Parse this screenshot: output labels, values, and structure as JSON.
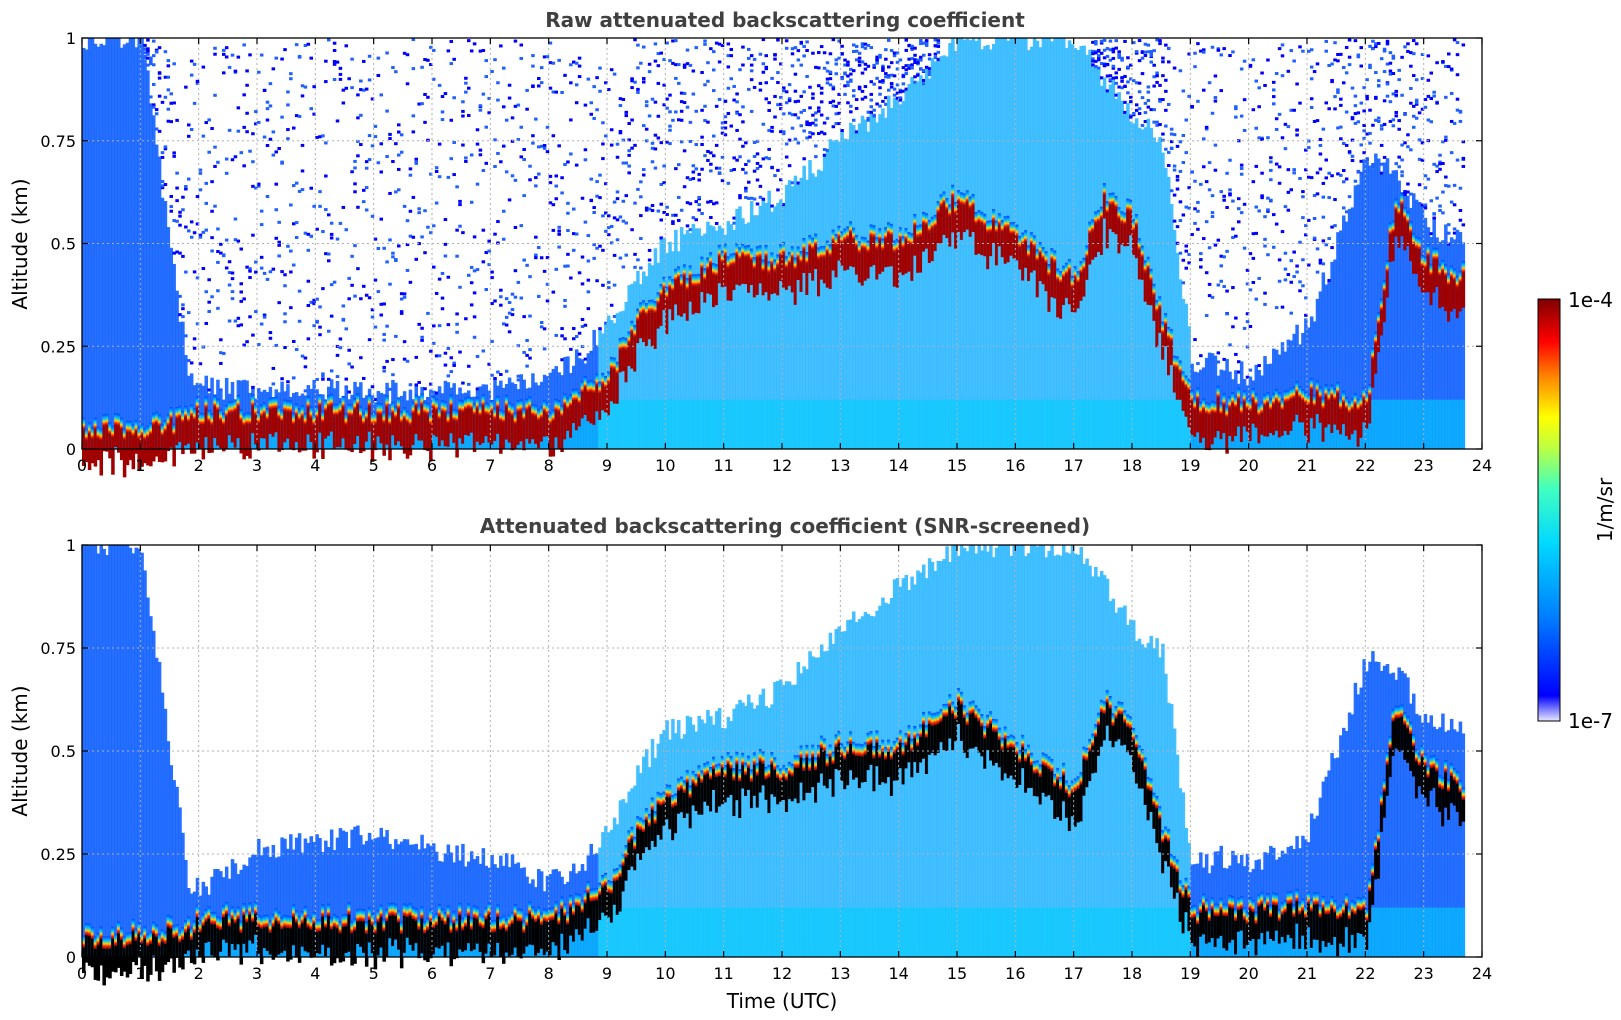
{
  "chart_data": [
    {
      "type": "heatmap",
      "title": "Raw attenuated backscattering coefficient",
      "ylabel": "Altitude (km)",
      "xlabel": "",
      "xlim": [
        0,
        24
      ],
      "ylim": [
        0,
        1
      ],
      "x_ticks": [
        "0",
        "1",
        "2",
        "3",
        "4",
        "5",
        "6",
        "7",
        "8",
        "9",
        "10",
        "11",
        "12",
        "13",
        "14",
        "15",
        "16",
        "17",
        "18",
        "19",
        "20",
        "21",
        "22",
        "23",
        "24"
      ],
      "y_ticks": [
        "0",
        "0.25",
        "0.5",
        "0.75",
        "1"
      ],
      "grid": true,
      "variant": "raw",
      "profile": {
        "time": [
          0,
          1,
          1.8,
          2,
          3,
          4,
          5,
          6,
          7,
          8,
          8.5,
          9,
          9.5,
          10,
          11,
          12,
          13,
          14,
          15,
          16,
          17,
          17.5,
          18,
          18.5,
          19,
          19.5,
          20,
          21,
          22,
          22.5,
          23,
          23.7
        ],
        "surface_layer_altitude": [
          0.03,
          0.04,
          0.06,
          0.08,
          0.08,
          0.08,
          0.08,
          0.08,
          0.08,
          0.08,
          0.12,
          0.16,
          0.3,
          0.38,
          0.45,
          0.45,
          0.5,
          0.5,
          0.6,
          0.5,
          0.4,
          0.6,
          0.55,
          0.3,
          0.1,
          0.1,
          0.1,
          0.12,
          0.1,
          0.6,
          0.45,
          0.4
        ],
        "cloud_top_altitude": [
          1,
          1,
          0.18,
          0.15,
          0.14,
          0.14,
          0.14,
          0.14,
          0.14,
          0.18,
          0.22,
          0.3,
          0.42,
          0.5,
          0.55,
          0.62,
          0.75,
          0.85,
          1,
          1,
          1,
          0.9,
          0.8,
          0.75,
          0.22,
          0.2,
          0.18,
          0.3,
          0.7,
          0.68,
          0.55,
          0.5
        ]
      }
    },
    {
      "type": "heatmap",
      "title": "Attenuated backscattering coefficient (SNR-screened)",
      "ylabel": "Altitude (km)",
      "xlabel": "Time (UTC)",
      "xlim": [
        0,
        24
      ],
      "ylim": [
        0,
        1
      ],
      "x_ticks": [
        "0",
        "1",
        "2",
        "3",
        "4",
        "5",
        "6",
        "7",
        "8",
        "9",
        "10",
        "11",
        "12",
        "13",
        "14",
        "15",
        "16",
        "17",
        "18",
        "19",
        "20",
        "21",
        "22",
        "23",
        "24"
      ],
      "y_ticks": [
        "0",
        "0.25",
        "0.5",
        "0.75",
        "1"
      ],
      "grid": true,
      "variant": "screened",
      "profile": {
        "time": [
          0,
          1,
          1.8,
          2,
          3,
          4,
          5,
          6,
          7,
          8,
          8.5,
          9,
          9.5,
          10,
          11,
          12,
          13,
          14,
          15,
          16,
          17,
          17.5,
          18,
          18.5,
          19,
          19.5,
          20,
          21,
          22,
          22.5,
          23,
          23.7
        ],
        "surface_layer_altitude": [
          0.03,
          0.04,
          0.06,
          0.08,
          0.08,
          0.08,
          0.08,
          0.08,
          0.08,
          0.08,
          0.12,
          0.16,
          0.3,
          0.38,
          0.45,
          0.45,
          0.5,
          0.5,
          0.6,
          0.5,
          0.4,
          0.6,
          0.55,
          0.3,
          0.1,
          0.1,
          0.1,
          0.12,
          0.1,
          0.6,
          0.45,
          0.4
        ],
        "cloud_top_altitude": [
          1,
          1,
          0.18,
          0.16,
          0.26,
          0.28,
          0.3,
          0.26,
          0.24,
          0.18,
          0.22,
          0.3,
          0.45,
          0.55,
          0.58,
          0.65,
          0.8,
          0.9,
          1,
          1,
          1,
          0.9,
          0.8,
          0.75,
          0.22,
          0.24,
          0.22,
          0.3,
          0.72,
          0.7,
          0.58,
          0.55
        ]
      }
    }
  ],
  "colorbar": {
    "label": "1/m/sr",
    "max_label": "1e-4",
    "min_label": "1e-7",
    "colors": [
      "#e8e8ff",
      "#0000ff",
      "#0080ff",
      "#00d8ff",
      "#40ffc0",
      "#c0ff40",
      "#ffff00",
      "#ff8000",
      "#ff0000",
      "#800000"
    ]
  }
}
